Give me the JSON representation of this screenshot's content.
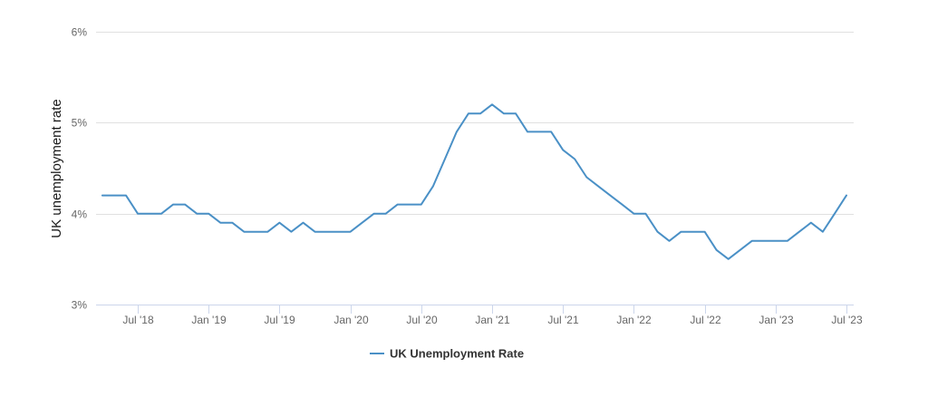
{
  "chart_data": {
    "type": "line",
    "title": "",
    "xlabel": "",
    "ylabel": "UK unemployment rate",
    "y_unit": "%",
    "ylim": [
      3,
      6
    ],
    "y_ticks": [
      3,
      4,
      5,
      6
    ],
    "y_tick_labels": [
      "3%",
      "4%",
      "5%",
      "6%"
    ],
    "x_ticks": [
      "2018-07",
      "2019-01",
      "2019-07",
      "2020-01",
      "2020-07",
      "2021-01",
      "2021-07",
      "2022-01",
      "2022-07",
      "2023-01",
      "2023-07"
    ],
    "x_tick_labels": [
      "Jul '18",
      "Jan '19",
      "Jul '19",
      "Jan '20",
      "Jul '20",
      "Jan '21",
      "Jul '21",
      "Jan '22",
      "Jul '22",
      "Jan '23",
      "Jul '23"
    ],
    "grid": true,
    "legend_position": "bottom-center",
    "series": [
      {
        "name": "UK Unemployment Rate",
        "color": "#4a90c6",
        "x": [
          "2018-04",
          "2018-05",
          "2018-06",
          "2018-07",
          "2018-08",
          "2018-09",
          "2018-10",
          "2018-11",
          "2018-12",
          "2019-01",
          "2019-02",
          "2019-03",
          "2019-04",
          "2019-05",
          "2019-06",
          "2019-07",
          "2019-08",
          "2019-09",
          "2019-10",
          "2019-11",
          "2019-12",
          "2020-01",
          "2020-02",
          "2020-03",
          "2020-04",
          "2020-05",
          "2020-06",
          "2020-07",
          "2020-08",
          "2020-09",
          "2020-10",
          "2020-11",
          "2020-12",
          "2021-01",
          "2021-02",
          "2021-03",
          "2021-04",
          "2021-05",
          "2021-06",
          "2021-07",
          "2021-08",
          "2021-09",
          "2021-10",
          "2021-11",
          "2021-12",
          "2022-01",
          "2022-02",
          "2022-03",
          "2022-04",
          "2022-05",
          "2022-06",
          "2022-07",
          "2022-08",
          "2022-09",
          "2022-10",
          "2022-11",
          "2022-12",
          "2023-01",
          "2023-02",
          "2023-03",
          "2023-04",
          "2023-05",
          "2023-06",
          "2023-07"
        ],
        "values": [
          4.2,
          4.2,
          4.2,
          4.0,
          4.0,
          4.0,
          4.1,
          4.1,
          4.0,
          4.0,
          3.9,
          3.9,
          3.8,
          3.8,
          3.8,
          3.9,
          3.8,
          3.9,
          3.8,
          3.8,
          3.8,
          3.8,
          3.9,
          4.0,
          4.0,
          4.1,
          4.1,
          4.1,
          4.3,
          4.6,
          4.9,
          5.1,
          5.1,
          5.2,
          5.1,
          5.1,
          4.9,
          4.9,
          4.9,
          4.7,
          4.6,
          4.4,
          4.3,
          4.2,
          4.1,
          4.0,
          4.0,
          3.8,
          3.7,
          3.8,
          3.8,
          3.8,
          3.6,
          3.5,
          3.6,
          3.7,
          3.7,
          3.7,
          3.7,
          3.8,
          3.9,
          3.8,
          4.0,
          4.2
        ]
      }
    ]
  }
}
